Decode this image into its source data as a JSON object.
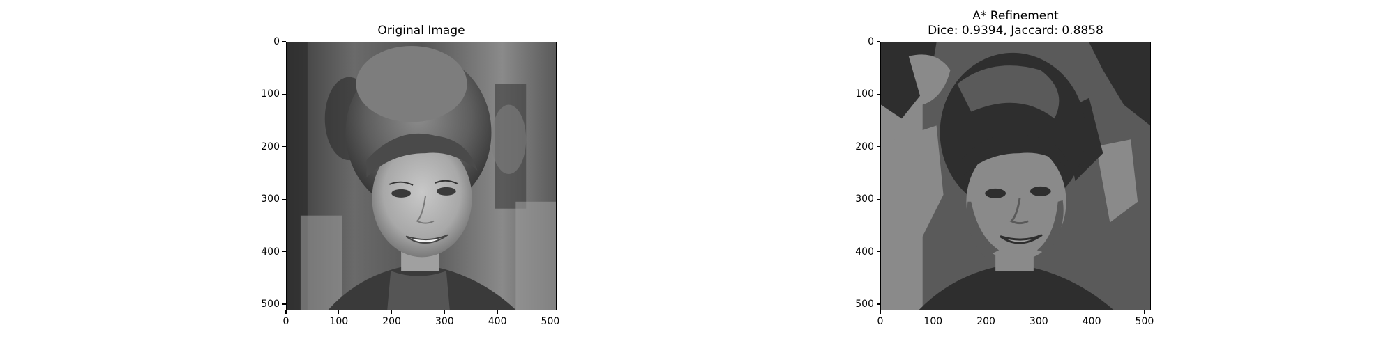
{
  "panels": [
    {
      "title": "Original Image",
      "image": "grayscale portrait photo of a smiling woman with bouffant hair"
    },
    {
      "title": "A* Refinement\nDice: 0.9394, Jaccard: 0.8858",
      "image": "four-level posterized segmentation of the same portrait"
    }
  ],
  "axes": {
    "x_ticks": [
      "0",
      "100",
      "200",
      "300",
      "400",
      "500"
    ],
    "y_ticks": [
      "0",
      "100",
      "200",
      "300",
      "400",
      "500"
    ],
    "x_range": [
      0,
      512
    ],
    "y_range": [
      0,
      512
    ]
  },
  "colors": {
    "seg_dark": "#2e2e2e",
    "seg_mid": "#5a5a5a",
    "seg_light": "#8a8a8a",
    "seg_lighter": "#a0a0a0"
  }
}
